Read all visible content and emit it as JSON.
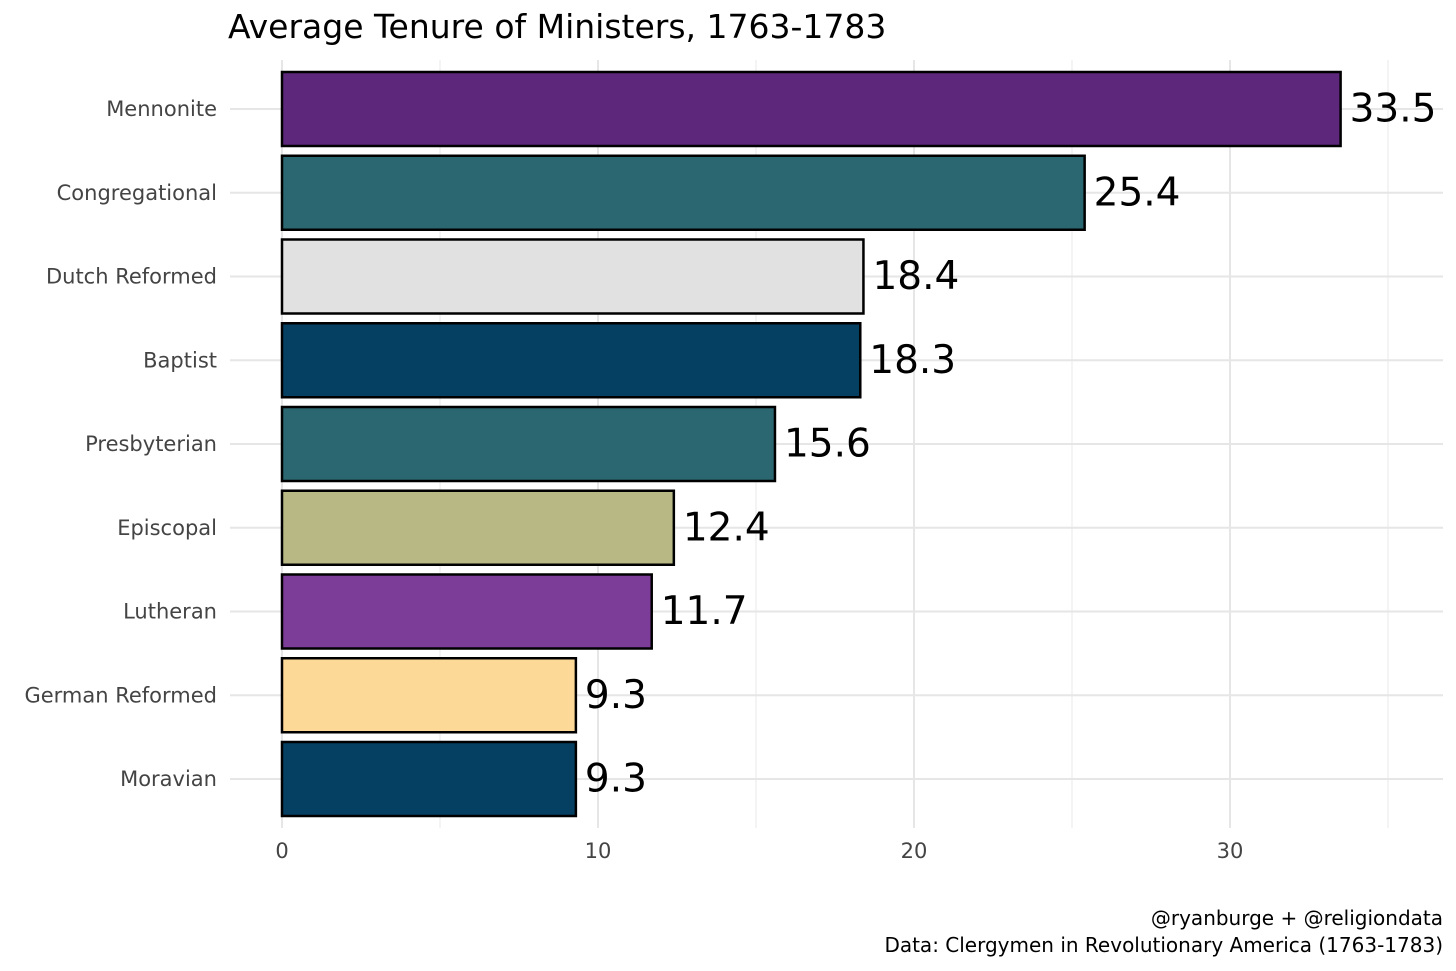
{
  "chart_data": {
    "type": "bar",
    "orientation": "horizontal",
    "title": "Average Tenure of Ministers, 1763-1783",
    "categories": [
      "Mennonite",
      "Congregational",
      "Dutch Reformed",
      "Baptist",
      "Presbyterian",
      "Episcopal",
      "Lutheran",
      "German Reformed",
      "Moravian"
    ],
    "values": [
      33.5,
      25.4,
      18.4,
      18.3,
      15.6,
      12.4,
      11.7,
      9.3,
      9.3
    ],
    "value_labels": [
      "33.5",
      "25.4",
      "18.4",
      "18.3",
      "15.6",
      "12.4",
      "11.7",
      "9.3",
      "9.3"
    ],
    "colors": [
      "#5d287c",
      "#2a6770",
      "#e1e1e1",
      "#053f62",
      "#2a6770",
      "#b8b885",
      "#7c3d98",
      "#fdd998",
      "#053f62"
    ],
    "x_ticks": [
      0,
      10,
      20,
      30
    ],
    "x_tick_labels": [
      "0",
      "10",
      "20",
      "30"
    ],
    "xlim": [
      0,
      36
    ],
    "xlabel": "",
    "ylabel": "",
    "grid": true,
    "legend": "none"
  },
  "caption": {
    "line1": "@ryanburge + @religiondata",
    "line2": "Data: Clergymen in Revolutionary America (1763-1783)"
  }
}
